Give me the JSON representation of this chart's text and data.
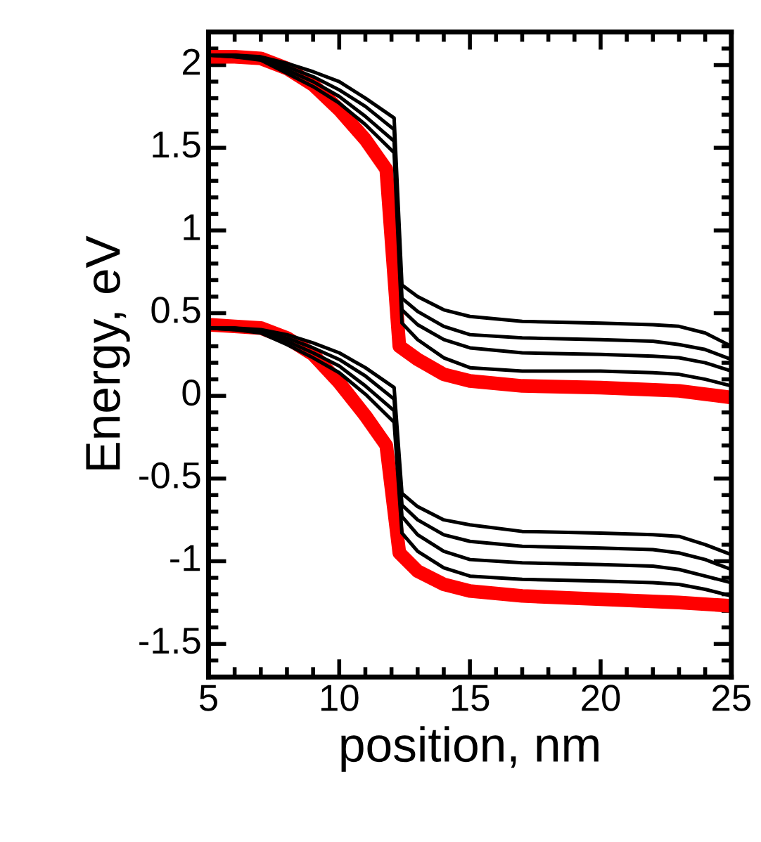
{
  "chart_data": {
    "type": "line",
    "xlabel": "position, nm",
    "ylabel": "Energy, eV",
    "xlim": [
      5,
      25
    ],
    "ylim": [
      -1.7,
      2.2
    ],
    "xticks": [
      5,
      10,
      15,
      20,
      25
    ],
    "yticks": [
      -1.5,
      -1,
      -0.5,
      0,
      0.5,
      1,
      1.5,
      2
    ],
    "grid": false,
    "marker": "none",
    "line_style": "solid",
    "series": [
      {
        "color": "#ff0000",
        "x": [
          5,
          6,
          7,
          8,
          9,
          10,
          11,
          11.8,
          12.3,
          13,
          14,
          15,
          17,
          20,
          23,
          24,
          25
        ],
        "values": [
          2.05,
          2.05,
          2.04,
          1.98,
          1.88,
          1.73,
          1.55,
          1.37,
          0.3,
          0.22,
          0.13,
          0.09,
          0.06,
          0.05,
          0.03,
          0.01,
          -0.01
        ]
      },
      {
        "color": "#000000",
        "x": [
          5,
          6,
          7,
          8,
          9,
          10,
          11,
          12.1,
          12.4,
          13,
          14,
          15,
          17,
          20,
          22,
          23,
          24,
          25
        ],
        "values": [
          2.06,
          2.06,
          2.05,
          2.01,
          1.96,
          1.9,
          1.8,
          1.68,
          0.67,
          0.6,
          0.52,
          0.48,
          0.45,
          0.44,
          0.43,
          0.42,
          0.38,
          0.3
        ]
      },
      {
        "color": "#000000",
        "x": [
          5,
          6,
          7,
          8,
          9,
          10,
          11,
          12.1,
          12.4,
          13,
          14,
          15,
          17,
          20,
          22,
          23,
          24,
          25
        ],
        "values": [
          2.06,
          2.06,
          2.04,
          1.99,
          1.93,
          1.85,
          1.75,
          1.61,
          0.59,
          0.51,
          0.42,
          0.37,
          0.35,
          0.34,
          0.33,
          0.31,
          0.28,
          0.22
        ]
      },
      {
        "color": "#000000",
        "x": [
          5,
          6,
          7,
          8,
          9,
          10,
          11,
          12.1,
          12.4,
          13,
          14,
          15,
          17,
          20,
          22,
          23,
          24,
          25
        ],
        "values": [
          2.06,
          2.05,
          2.04,
          1.97,
          1.9,
          1.81,
          1.69,
          1.54,
          0.52,
          0.43,
          0.34,
          0.29,
          0.26,
          0.25,
          0.24,
          0.23,
          0.2,
          0.15
        ]
      },
      {
        "color": "#000000",
        "x": [
          5,
          6,
          7,
          8,
          9,
          10,
          11,
          12.1,
          12.4,
          13,
          14,
          15,
          17,
          20,
          22,
          23,
          24,
          25
        ],
        "values": [
          2.06,
          2.05,
          2.03,
          1.95,
          1.87,
          1.77,
          1.64,
          1.47,
          0.44,
          0.34,
          0.23,
          0.17,
          0.15,
          0.15,
          0.14,
          0.13,
          0.1,
          0.06
        ]
      },
      {
        "color": "#ff0000",
        "x": [
          5,
          6,
          7,
          8,
          9,
          10,
          11,
          11.8,
          12.3,
          13,
          14,
          15,
          17,
          20,
          23,
          24,
          25
        ],
        "values": [
          0.43,
          0.42,
          0.41,
          0.35,
          0.25,
          0.08,
          -0.12,
          -0.3,
          -0.95,
          -1.06,
          -1.14,
          -1.18,
          -1.21,
          -1.23,
          -1.25,
          -1.26,
          -1.27
        ]
      },
      {
        "color": "#000000",
        "x": [
          5,
          6,
          7,
          8,
          9,
          10,
          11,
          12.1,
          12.4,
          13,
          14,
          15,
          17,
          20,
          22,
          23,
          24,
          25
        ],
        "values": [
          0.41,
          0.41,
          0.4,
          0.37,
          0.32,
          0.26,
          0.17,
          0.05,
          -0.59,
          -0.67,
          -0.75,
          -0.78,
          -0.82,
          -0.83,
          -0.84,
          -0.85,
          -0.9,
          -0.96
        ]
      },
      {
        "color": "#000000",
        "x": [
          5,
          6,
          7,
          8,
          9,
          10,
          11,
          12.1,
          12.4,
          13,
          14,
          15,
          17,
          20,
          22,
          23,
          24,
          25
        ],
        "values": [
          0.41,
          0.41,
          0.39,
          0.35,
          0.29,
          0.22,
          0.12,
          -0.02,
          -0.66,
          -0.75,
          -0.84,
          -0.88,
          -0.91,
          -0.92,
          -0.93,
          -0.95,
          -0.99,
          -1.05
        ]
      },
      {
        "color": "#000000",
        "x": [
          5,
          6,
          7,
          8,
          9,
          10,
          11,
          12.1,
          12.4,
          13,
          14,
          15,
          17,
          20,
          22,
          23,
          24,
          25
        ],
        "values": [
          0.41,
          0.4,
          0.39,
          0.33,
          0.26,
          0.18,
          0.06,
          -0.09,
          -0.73,
          -0.84,
          -0.94,
          -0.99,
          -1.01,
          -1.02,
          -1.03,
          -1.05,
          -1.09,
          -1.13
        ]
      },
      {
        "color": "#000000",
        "x": [
          5,
          6,
          7,
          8,
          9,
          10,
          11,
          12.1,
          12.4,
          13,
          14,
          15,
          17,
          20,
          22,
          23,
          24,
          25
        ],
        "values": [
          0.41,
          0.4,
          0.38,
          0.31,
          0.23,
          0.14,
          0.01,
          -0.16,
          -0.83,
          -0.94,
          -1.04,
          -1.09,
          -1.11,
          -1.12,
          -1.13,
          -1.14,
          -1.17,
          -1.21
        ]
      }
    ]
  }
}
